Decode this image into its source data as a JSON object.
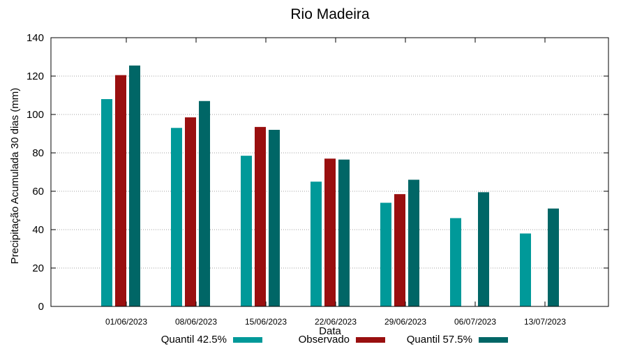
{
  "chart_data": {
    "type": "bar",
    "title": "Rio Madeira",
    "xlabel": "Data",
    "ylabel": "Precipitação Acumulada 30 dias (mm)",
    "ylim": [
      0,
      140
    ],
    "yticks": [
      0,
      20,
      40,
      60,
      80,
      100,
      120,
      140
    ],
    "grid": true,
    "legend_position": "bottom",
    "categories": [
      "01/06/2023",
      "08/06/2023",
      "15/06/2023",
      "22/06/2023",
      "29/06/2023",
      "06/07/2023",
      "13/07/2023"
    ],
    "series": [
      {
        "name": "Quantil 42.5%",
        "color": "#009999",
        "values": [
          108,
          93,
          78.5,
          65,
          54,
          46,
          38
        ]
      },
      {
        "name": "Observado",
        "color": "#990f0f",
        "values": [
          120.5,
          98.5,
          93.5,
          77,
          58.5,
          null,
          null
        ]
      },
      {
        "name": "Quantil 57.5%",
        "color": "#006666",
        "values": [
          125.5,
          107,
          92,
          76.5,
          66,
          59.5,
          51
        ]
      }
    ]
  }
}
